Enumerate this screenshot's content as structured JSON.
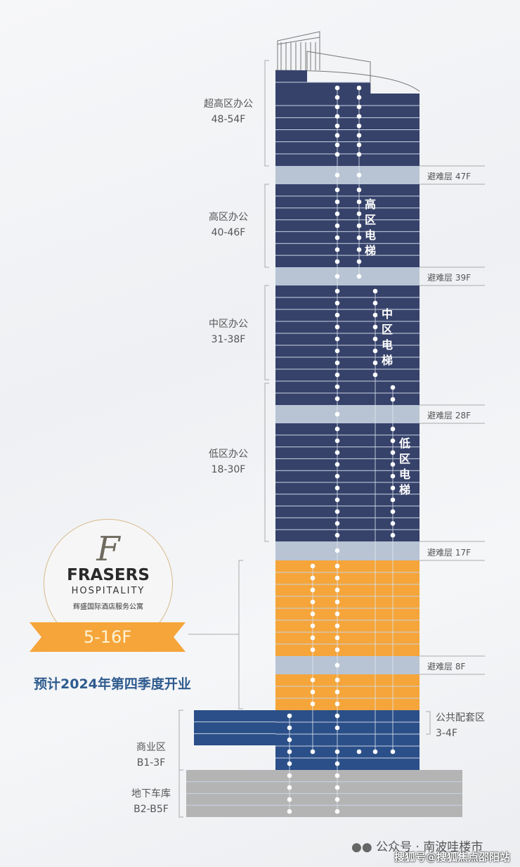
{
  "zones": {
    "super_high": {
      "name": "超高区办公",
      "floors": "48-54F"
    },
    "high": {
      "name": "高区办公",
      "floors": "40-46F"
    },
    "mid": {
      "name": "中区办公",
      "floors": "31-38F"
    },
    "low": {
      "name": "低区办公",
      "floors": "18-30F"
    },
    "public": {
      "name": "公共配套区",
      "floors": "3-4F"
    },
    "retail": {
      "name": "商业区",
      "floors": "B1-3F"
    },
    "parking": {
      "name": "地下车库",
      "floors": "B2-B5F"
    }
  },
  "refuge_floors": [
    "避难层 47F",
    "避难层 39F",
    "避难层 28F",
    "避难层 17F",
    "避难层 8F"
  ],
  "elevators": {
    "high": "高区电梯",
    "mid": "中区电梯",
    "low": "低区电梯"
  },
  "hotel": {
    "logo_text": "FRASERS",
    "logo_sub": "HOSPITALITY",
    "logo_cn": "辉盛国际酒店服务公寓",
    "floors": "5-16F",
    "opening": "预计2024年第四季度开业"
  },
  "colors": {
    "office": "#36426a",
    "refuge": "#b8c4d4",
    "hotel": "#f5a53a",
    "retail": "#2b4f88",
    "parking": "#b4b4b4"
  },
  "watermark": {
    "wechat": "公众号 · 南波哇楼市",
    "sohu": "搜狐号@搜狐焦点邵阳站"
  }
}
